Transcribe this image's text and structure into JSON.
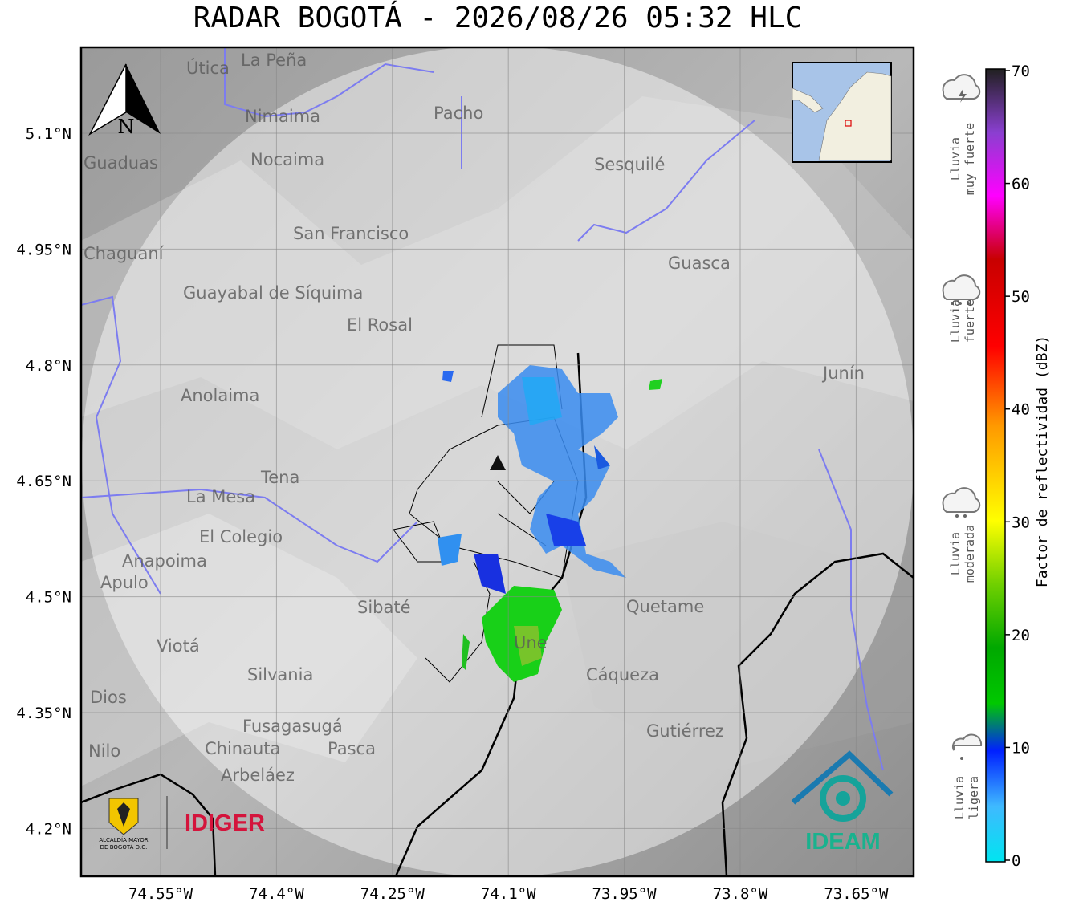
{
  "title": "RADAR BOGOTÁ - 2026/08/26 05:32 HLC",
  "map": {
    "lat_ticks": [
      "5.1°N",
      "4.95°N",
      "4.8°N",
      "4.65°N",
      "4.5°N",
      "4.35°N",
      "4.2°N"
    ],
    "lon_ticks": [
      "74.55°W",
      "74.4°W",
      "74.25°W",
      "74.1°W",
      "73.95°W",
      "73.8°W",
      "73.65°W"
    ],
    "north": "N",
    "places": [
      "La Peña",
      "Útica",
      "Nimaima",
      "Nocaima",
      "Guaduas",
      "Chaguaní",
      "San Francisco",
      "Guayabal de Síquima",
      "El Rosal",
      "Anolaima",
      "La Mesa",
      "Tena",
      "El Colegio",
      "Anapoima",
      "Apulo",
      "Viotá",
      "Silvania",
      "Fusagasugá",
      "Chinauta",
      "Arbeláez",
      "Nilo",
      "Pasca",
      "Cáqueza",
      "Une",
      "Guasca",
      "Sesquilé",
      "Quetame",
      "Gutiérrez",
      "Junín",
      "Dios",
      "Sibaté",
      "Pacho"
    ]
  },
  "logos": {
    "idiger": "IDIGER",
    "ideam": "IDEAM",
    "alcaldia": [
      "ALCALDÍA MAYOR",
      "DE BOGOTÁ D.C."
    ]
  },
  "colorbar": {
    "label": "Factor de reflectividad (dBZ)",
    "lim": [
      0,
      70
    ],
    "ticks": [
      0,
      10,
      20,
      30,
      40,
      50,
      60,
      70
    ]
  },
  "legend": [
    [
      "Lluvia",
      "muy fuerte"
    ],
    [
      "Lluvia",
      "fuerte"
    ],
    [
      "Lluvia",
      "moderada"
    ],
    [
      "Lluvia",
      "ligera"
    ]
  ]
}
